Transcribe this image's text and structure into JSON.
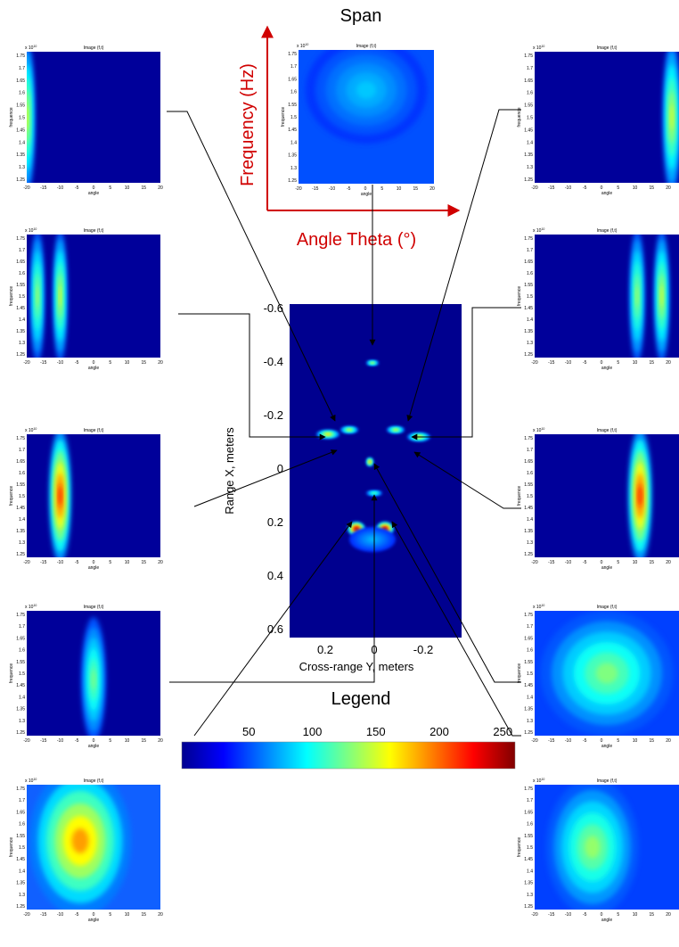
{
  "title": "Span",
  "axis_labels": {
    "y": "Frequency (Hz)",
    "x": "Angle Theta (°)"
  },
  "center": {
    "y_label": "Range X, meters",
    "x_label": "Cross-range Y, meters",
    "yticks": [
      -0.6,
      -0.4,
      -0.2,
      0,
      0.2,
      0.4,
      0.6
    ],
    "xticks": [
      0.2,
      0,
      -0.2
    ]
  },
  "panel": {
    "title": "Image (f,t)",
    "exponent_base": "x 10",
    "exponent": "10",
    "y_label": "frequence",
    "x_label": "angle",
    "yticks": [
      1.75,
      1.7,
      1.65,
      1.6,
      1.55,
      1.5,
      1.45,
      1.4,
      1.35,
      1.3,
      1.25
    ],
    "xticks": [
      -20,
      -15,
      -10,
      -5,
      0,
      5,
      10,
      15,
      20
    ]
  },
  "legend": {
    "title": "Legend",
    "ticks": [
      50,
      100,
      150,
      200,
      250
    ]
  }
}
